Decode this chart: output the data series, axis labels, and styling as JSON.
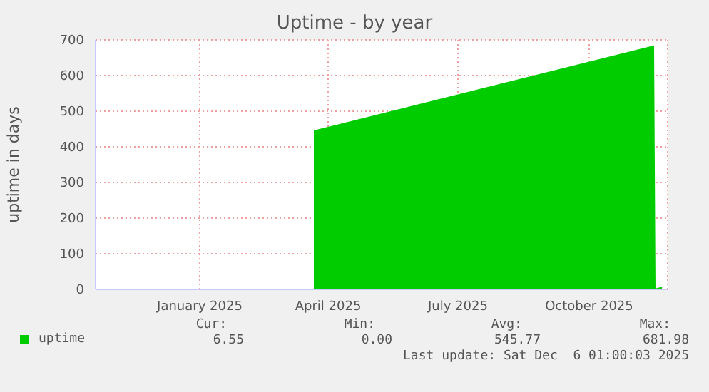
{
  "chart_data": {
    "type": "area",
    "title": "Uptime - by year",
    "ylabel": "uptime in days",
    "x": [
      "2025-04-06",
      "2025-07-01",
      "2025-09-01",
      "2025-11-30",
      "2025-12-01",
      "2025-12-05",
      "2025-12-06"
    ],
    "series": [
      {
        "name": "uptime",
        "color": "#00cc00",
        "values": [
          444,
          530,
          592,
          682,
          0,
          4,
          6.55
        ]
      }
    ],
    "xlim": [
      "2024-11-04",
      "2025-12-10"
    ],
    "xticks": [
      {
        "value": "2025-01-16",
        "label": "January 2025"
      },
      {
        "value": "2025-04-16",
        "label": "April 2025"
      },
      {
        "value": "2025-07-16",
        "label": "July 2025"
      },
      {
        "value": "2025-10-16",
        "label": "October 2025"
      }
    ],
    "ylim": [
      0,
      700
    ],
    "yticks": [
      0,
      100,
      200,
      300,
      400,
      500,
      600,
      700
    ],
    "grid": true,
    "legend": "bottom",
    "annotations": [
      "Cur:",
      "Min:",
      "Avg:",
      "Max:",
      "6.55",
      "0.00",
      "545.77",
      "681.98",
      "Last update: Sat Dec  6 01:00:03 2025"
    ]
  }
}
